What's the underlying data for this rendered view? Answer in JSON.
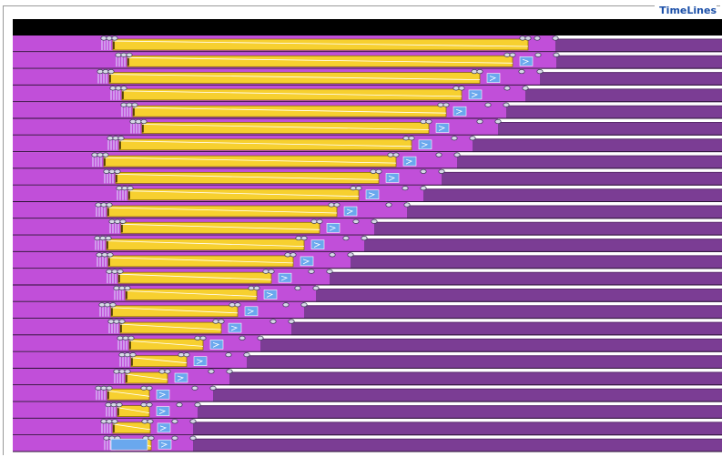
{
  "panel": {
    "title": "TimeLines"
  },
  "colors": {
    "header_bar": "#000000",
    "row_active_bg": "#c14fd9",
    "row_idle_bg": "#7b3d94",
    "row_separator": "#2a1233",
    "state_compute": "#f7d02f",
    "state_compute_border": "#8a6e00",
    "state_wait": "#6aa8ee",
    "event_marker": "#d8d8e8",
    "message_line": "#ffffff"
  },
  "icons": {
    "event-marker": "ellipse-bubble",
    "wait-state": "arrow-into-box"
  },
  "timelines": {
    "row_count": 25,
    "compute_time_ends": [
      566,
      549,
      513,
      493,
      476,
      457,
      438,
      421,
      402,
      380,
      356,
      337,
      320,
      308,
      284,
      268,
      247,
      229,
      209,
      191,
      170,
      150,
      150,
      151,
      152
    ],
    "total_time_ends": [
      596,
      597,
      579,
      563,
      542,
      533,
      505,
      488,
      471,
      451,
      433,
      397,
      386,
      371,
      348,
      333,
      320,
      306,
      272,
      257,
      238,
      220,
      203,
      198,
      198
    ]
  }
}
